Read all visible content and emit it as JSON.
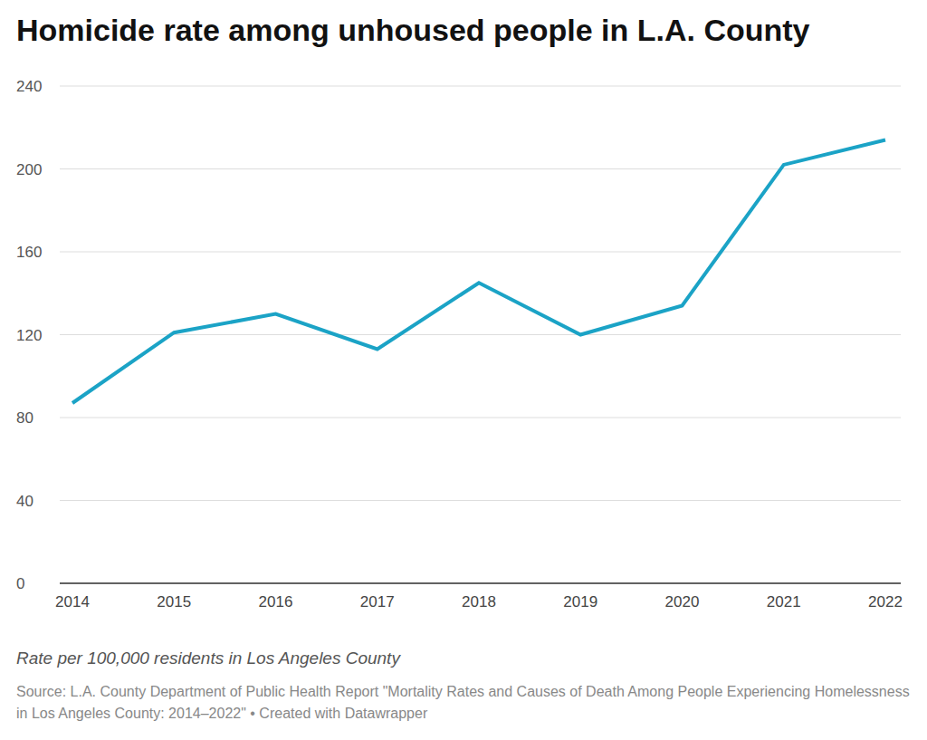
{
  "chart_data": {
    "type": "line",
    "title": "Homicide rate among unhoused people in L.A. County",
    "categories": [
      "2014",
      "2015",
      "2016",
      "2017",
      "2018",
      "2019",
      "2020",
      "2021",
      "2022"
    ],
    "values": [
      87,
      121,
      130,
      113,
      145,
      120,
      134,
      202,
      214
    ],
    "color": "#1ba3c6",
    "ylim": [
      0,
      240
    ],
    "yticks": [
      0,
      40,
      80,
      120,
      160,
      200,
      240
    ],
    "grid": true,
    "note": "Rate per 100,000 residents in Los Angeles County",
    "source": "Source: L.A. County Department of Public Health Report \"Mortality Rates and Causes of Death Among People Experiencing Homelessness in Los Angeles County: 2014–2022\" • Created with Datawrapper"
  }
}
